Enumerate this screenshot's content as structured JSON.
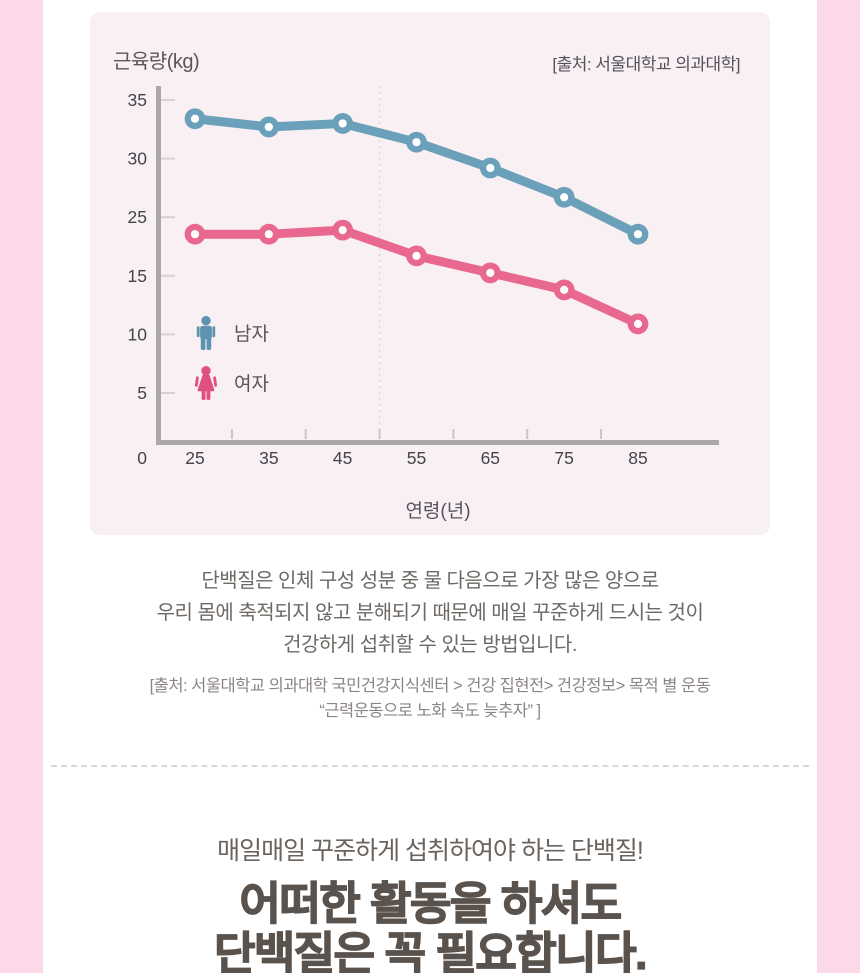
{
  "page": {
    "side_strip_color": "#fbd9e9",
    "content_background": "#ffffff",
    "panel_background": "#f8f0f3"
  },
  "chart_panel": {
    "y_axis_title": "근육량(kg)",
    "source_label": "[출처: 서울대학교 의과대학]",
    "y_tick_labels": [
      "35",
      "30",
      "25",
      "15",
      "10",
      "5"
    ],
    "y_origin_label": "0",
    "legend": [
      {
        "icon": "male",
        "label": "남자",
        "color": "#5d93b0"
      },
      {
        "icon": "female",
        "label": "여자",
        "color": "#e0517f"
      }
    ]
  },
  "chart_data": {
    "type": "line",
    "title": "",
    "xlabel": "연령(년)",
    "ylabel": "근육량(kg)",
    "x": [
      25,
      35,
      45,
      55,
      65,
      75,
      85
    ],
    "x_tick_labels": [
      "25",
      "35",
      "45",
      "55",
      "65",
      "75",
      "85"
    ],
    "y_axis_ticks_as_displayed": [
      0,
      5,
      10,
      15,
      25,
      30,
      35
    ],
    "ylim": [
      0,
      35
    ],
    "grid": false,
    "reference_line_x": 50,
    "legend_position": "inside-left",
    "series": [
      {
        "name": "남자",
        "color": "#6aa0ba",
        "values": [
          33.4,
          32.7,
          33,
          31.4,
          29.2,
          26.7,
          22.1
        ]
      },
      {
        "name": "여자",
        "color": "#e8688f",
        "values": [
          22.1,
          22.1,
          22.8,
          18.4,
          15.5,
          13.8,
          10.9
        ]
      }
    ]
  },
  "body": {
    "paragraph_lines": [
      "단백질은 인체 구성 성분 중 물 다음으로 가장 많은 양으로",
      "우리 몸에 축적되지 않고 분해되기 때문에 매일 꾸준하게 드시는 것이",
      "건강하게 섭취할 수 있는 방법입니다."
    ],
    "citation_lines": [
      "[출처: 서울대학교 의과대학 국민건강지식센터 > 건강 집현전> 건강정보> 목적 별 운동",
      "“근력운동으로 노화 속도 늦추자” ]"
    ],
    "subheading": "매일매일 꾸준하게 섭취하여야 하는 단백질!",
    "headline_lines": [
      "어떠한 활동을 하셔도",
      "단백질은 꼭 필요합니다."
    ]
  }
}
